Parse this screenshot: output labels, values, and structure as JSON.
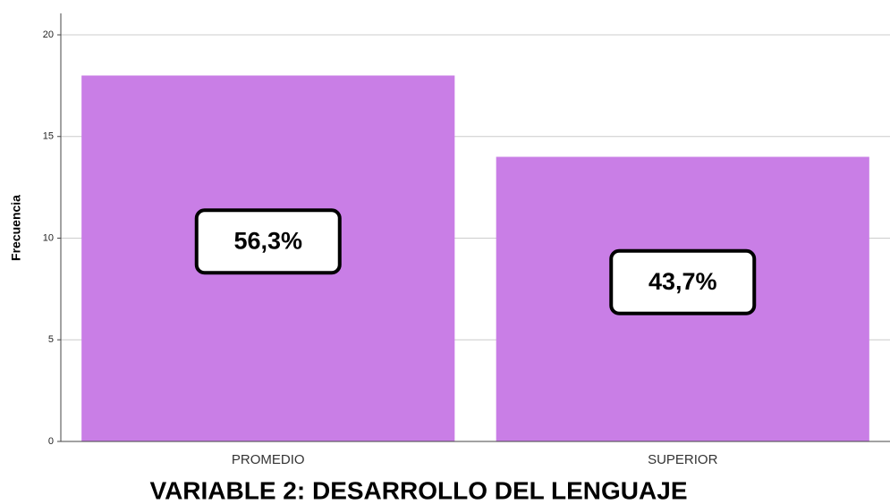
{
  "chart_data": {
    "type": "bar",
    "title": "VARIABLE 2: DESARROLLO DEL LENGUAJE",
    "y_label": "Frecuencia",
    "categories": [
      "PROMEDIO",
      "SUPERIOR"
    ],
    "values": [
      18,
      14
    ],
    "annotations": [
      "56,3%",
      "43,7%"
    ],
    "color": "#c97ee6",
    "ylim": [
      0,
      21
    ],
    "yticks": [
      0,
      5,
      10,
      15,
      20
    ],
    "grid": true
  }
}
